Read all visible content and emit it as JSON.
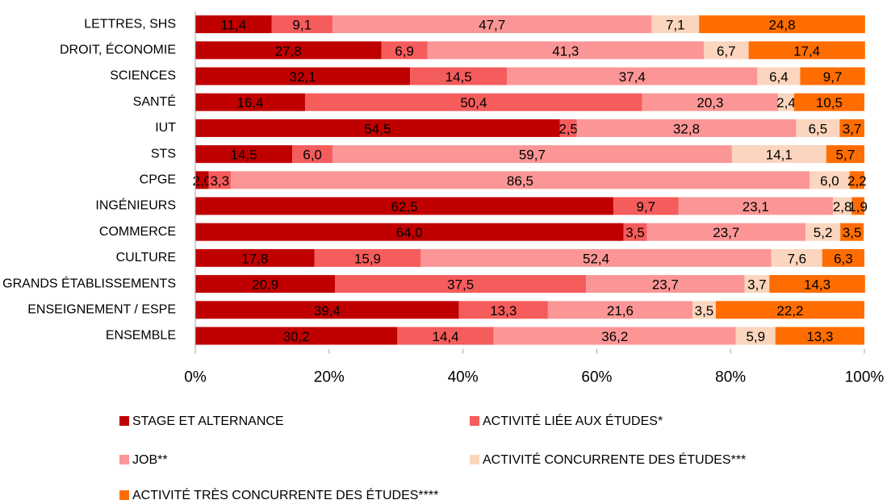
{
  "chart_data": {
    "type": "bar",
    "orientation": "horizontal",
    "stacked": true,
    "categories": [
      "LETTRES, SHS",
      "DROIT, ÉCONOMIE",
      "SCIENCES",
      "SANTÉ",
      "IUT",
      "STS",
      "CPGE",
      "INGÉNIEURS",
      "COMMERCE",
      "CULTURE",
      "GRANDS ÉTABLISSEMENTS",
      "ENSEIGNEMENT / ESPE",
      "ENSEMBLE"
    ],
    "series": [
      {
        "name": "STAGE ET ALTERNANCE",
        "color": "#c00000",
        "values": [
          11.4,
          27.8,
          32.1,
          16.4,
          54.5,
          14.5,
          2.0,
          62.5,
          64.0,
          17.8,
          20.9,
          39.4,
          30.2
        ],
        "value_labels": [
          "11,4",
          "27,8",
          "32,1",
          "16,4",
          "54,5",
          "14,5",
          "2,0",
          "62,5",
          "64,0",
          "17,8",
          "20,9",
          "39,4",
          "30,2"
        ]
      },
      {
        "name": "ACTIVITÉ LIÉE AUX ÉTUDES*",
        "color": "#f55c5c",
        "values": [
          9.1,
          6.9,
          14.5,
          50.4,
          2.5,
          6.0,
          3.3,
          9.7,
          3.5,
          15.9,
          37.5,
          13.3,
          14.4
        ],
        "value_labels": [
          "9,1",
          "6,9",
          "14,5",
          "50,4",
          "2,5",
          "6,0",
          "3,3",
          "9,7",
          "3,5",
          "15,9",
          "37,5",
          "13,3",
          "14,4"
        ]
      },
      {
        "name": "JOB**",
        "color": "#fc9696",
        "values": [
          47.7,
          41.3,
          37.4,
          20.3,
          32.8,
          59.7,
          86.5,
          23.1,
          23.7,
          52.4,
          23.7,
          21.6,
          36.2
        ],
        "value_labels": [
          "47,7",
          "41,3",
          "37,4",
          "20,3",
          "32,8",
          "59,7",
          "86,5",
          "23,1",
          "23,7",
          "52,4",
          "23,7",
          "21,6",
          "36,2"
        ]
      },
      {
        "name": "ACTIVITÉ CONCURRENTE DES ÉTUDES***",
        "color": "#fbd5bd",
        "values": [
          7.1,
          6.7,
          6.4,
          2.4,
          6.5,
          14.1,
          6.0,
          2.8,
          5.2,
          7.6,
          3.7,
          3.5,
          5.9
        ],
        "value_labels": [
          "7,1",
          "6,7",
          "6,4",
          "2,4",
          "6,5",
          "14,1",
          "6,0",
          "2,8",
          "5,2",
          "7,6",
          "3,7",
          "3,5",
          "5,9"
        ]
      },
      {
        "name": "ACTIVITÉ TRÈS CONCURRENTE DES ÉTUDES****",
        "color": "#ff6d00",
        "values": [
          24.8,
          17.4,
          9.7,
          10.5,
          3.7,
          5.7,
          2.2,
          1.9,
          3.5,
          6.3,
          14.3,
          22.2,
          13.3
        ],
        "value_labels": [
          "24,8",
          "17,4",
          "9,7",
          "10,5",
          "3,7",
          "5,7",
          "2,2",
          "1,9",
          "3,5",
          "6,3",
          "14,3",
          "22,2",
          "13,3"
        ]
      }
    ],
    "xlim": [
      0,
      100
    ],
    "xticks": [
      {
        "value": 0,
        "label": "0%"
      },
      {
        "value": 20,
        "label": "20%"
      },
      {
        "value": 40,
        "label": "40%"
      },
      {
        "value": 60,
        "label": "60%"
      },
      {
        "value": 80,
        "label": "80%"
      },
      {
        "value": 100,
        "label": "100%"
      }
    ],
    "legend": "bottom"
  }
}
